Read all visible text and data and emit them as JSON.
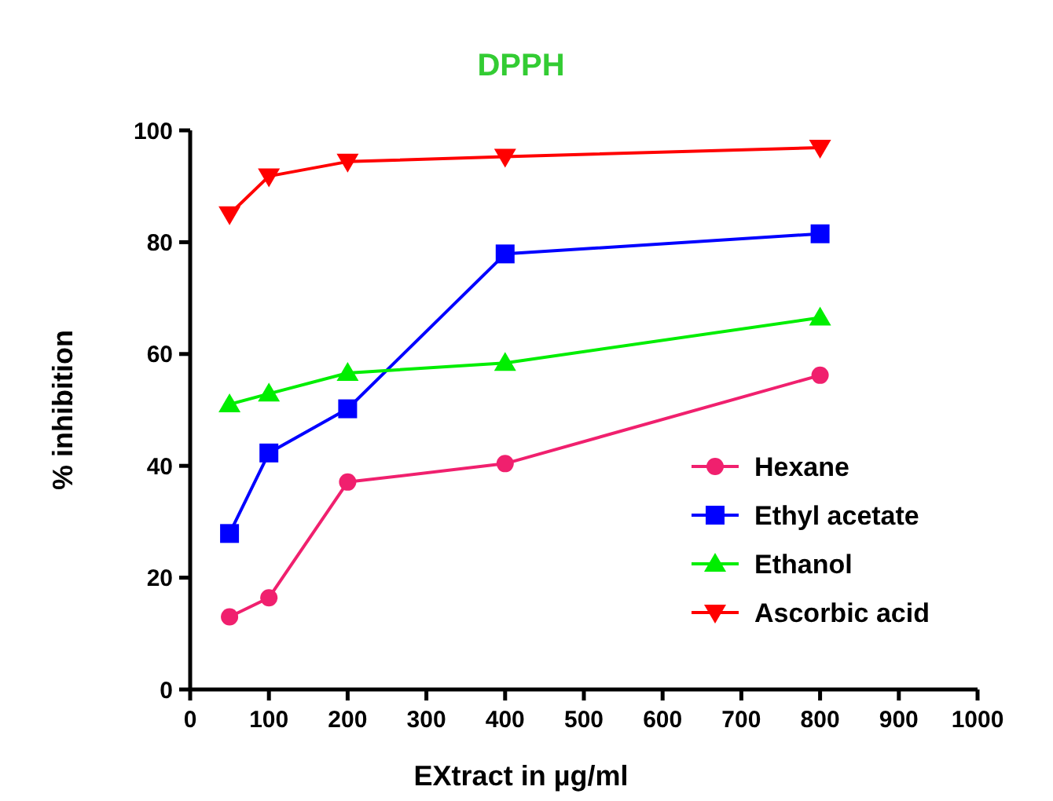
{
  "chart_data": {
    "type": "line",
    "title": "DPPH",
    "xlabel": "EXtract in µg/ml",
    "ylabel": "% inhibition",
    "x": [
      50,
      100,
      200,
      400,
      800
    ],
    "series": [
      {
        "name": "Hexane",
        "color": "#f0206e",
        "marker": "circle",
        "values": [
          13.0,
          16.4,
          37.1,
          40.4,
          56.2
        ]
      },
      {
        "name": "Ethyl acetate",
        "color": "#0000ff",
        "marker": "square",
        "values": [
          27.9,
          42.3,
          50.2,
          77.9,
          81.5
        ]
      },
      {
        "name": "Ethanol",
        "color": "#00ee00",
        "marker": "triangle",
        "values": [
          51.0,
          52.9,
          56.6,
          58.4,
          66.5
        ]
      },
      {
        "name": "Ascorbic acid",
        "color": "#ff0000",
        "marker": "triangle-down",
        "values": [
          85.0,
          91.8,
          94.4,
          95.3,
          96.9
        ]
      }
    ],
    "xlim": [
      0,
      1000
    ],
    "xticks": [
      0,
      100,
      200,
      300,
      400,
      500,
      600,
      700,
      800,
      900,
      1000
    ],
    "ylim": [
      0,
      100
    ],
    "yticks": [
      0,
      20,
      40,
      60,
      80,
      100
    ],
    "grid": false,
    "legend": "bottom right",
    "line_style": "solid"
  }
}
